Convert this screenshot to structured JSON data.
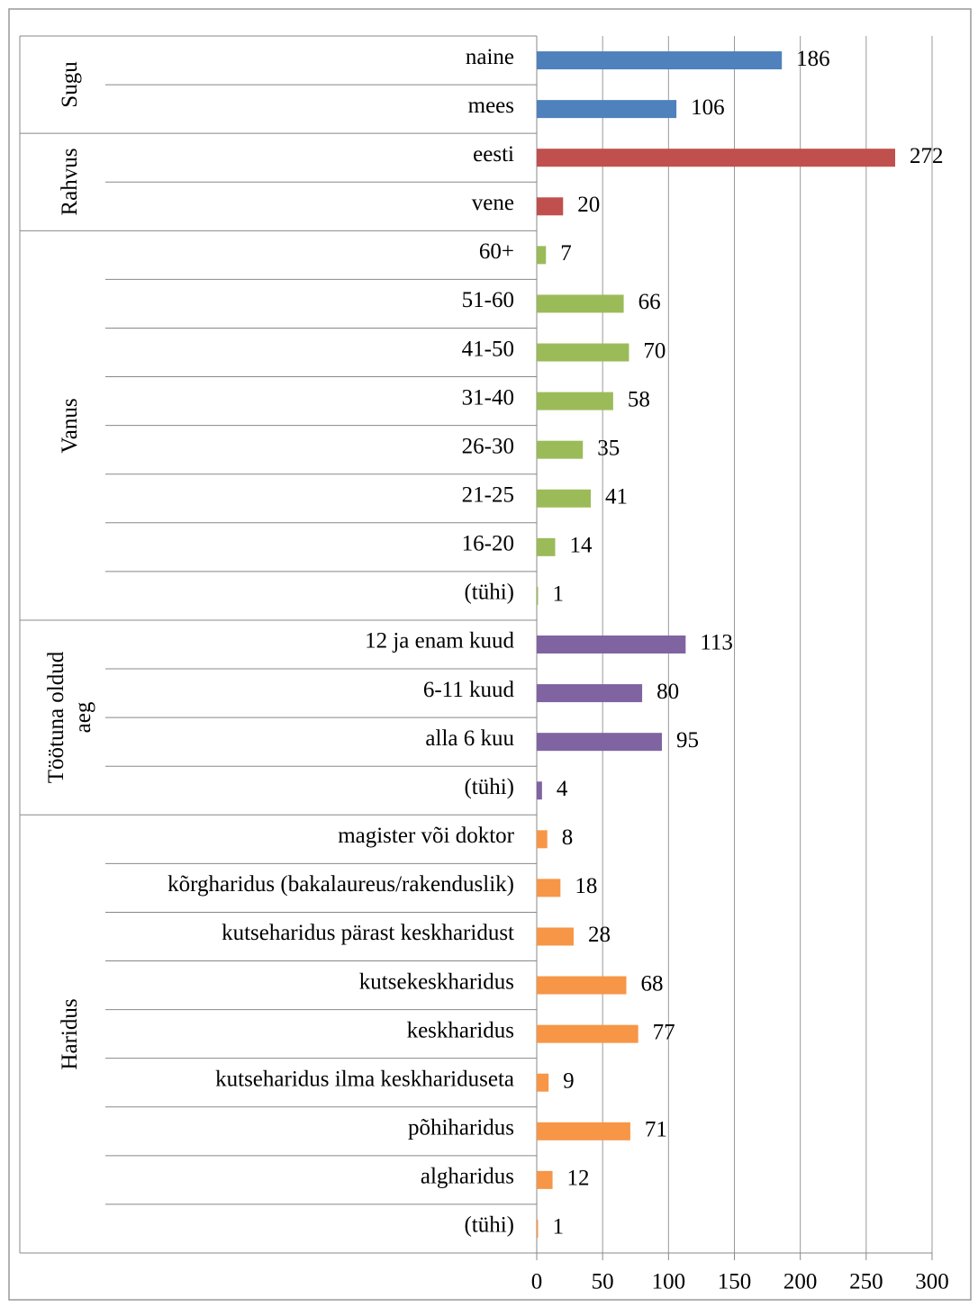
{
  "chart_data": {
    "type": "bar",
    "groups": [
      {
        "name": "Sugu",
        "color": "#4f81bd",
        "categories": [
          "naine",
          "mees"
        ],
        "values": [
          186,
          106
        ]
      },
      {
        "name": "Rahvus",
        "color": "#c0504d",
        "categories": [
          "eesti",
          "vene"
        ],
        "values": [
          272,
          20
        ]
      },
      {
        "name": "Vanus",
        "color": "#9bbb59",
        "categories": [
          "60+",
          "51-60",
          "41-50",
          "31-40",
          "26-30",
          "21-25",
          "16-20",
          "(tühi)"
        ],
        "values": [
          7,
          66,
          70,
          58,
          35,
          41,
          14,
          1
        ]
      },
      {
        "name": "Töötuna oldud aeg",
        "color": "#8064a2",
        "categories": [
          "12 ja enam kuud",
          "6-11 kuud",
          "alla 6 kuu",
          "(tühi)"
        ],
        "values": [
          113,
          80,
          95,
          4
        ]
      },
      {
        "name": "Haridus",
        "color": "#f79646",
        "categories": [
          "magister või doktor",
          "kõrgharidus (bakalaureus/rakenduslik)",
          "kutseharidus pärast keskharidust",
          "kutsekeskharidus",
          "keskharidus",
          "kutseharidus ilma keskhariduseta",
          "põhiharidus",
          "algharidus",
          "(tühi)"
        ],
        "values": [
          8,
          18,
          28,
          68,
          77,
          9,
          71,
          12,
          1
        ]
      }
    ],
    "xlim": [
      0,
      300
    ],
    "xticks": [
      0,
      50,
      100,
      150,
      200,
      250,
      300
    ],
    "grid": true
  }
}
